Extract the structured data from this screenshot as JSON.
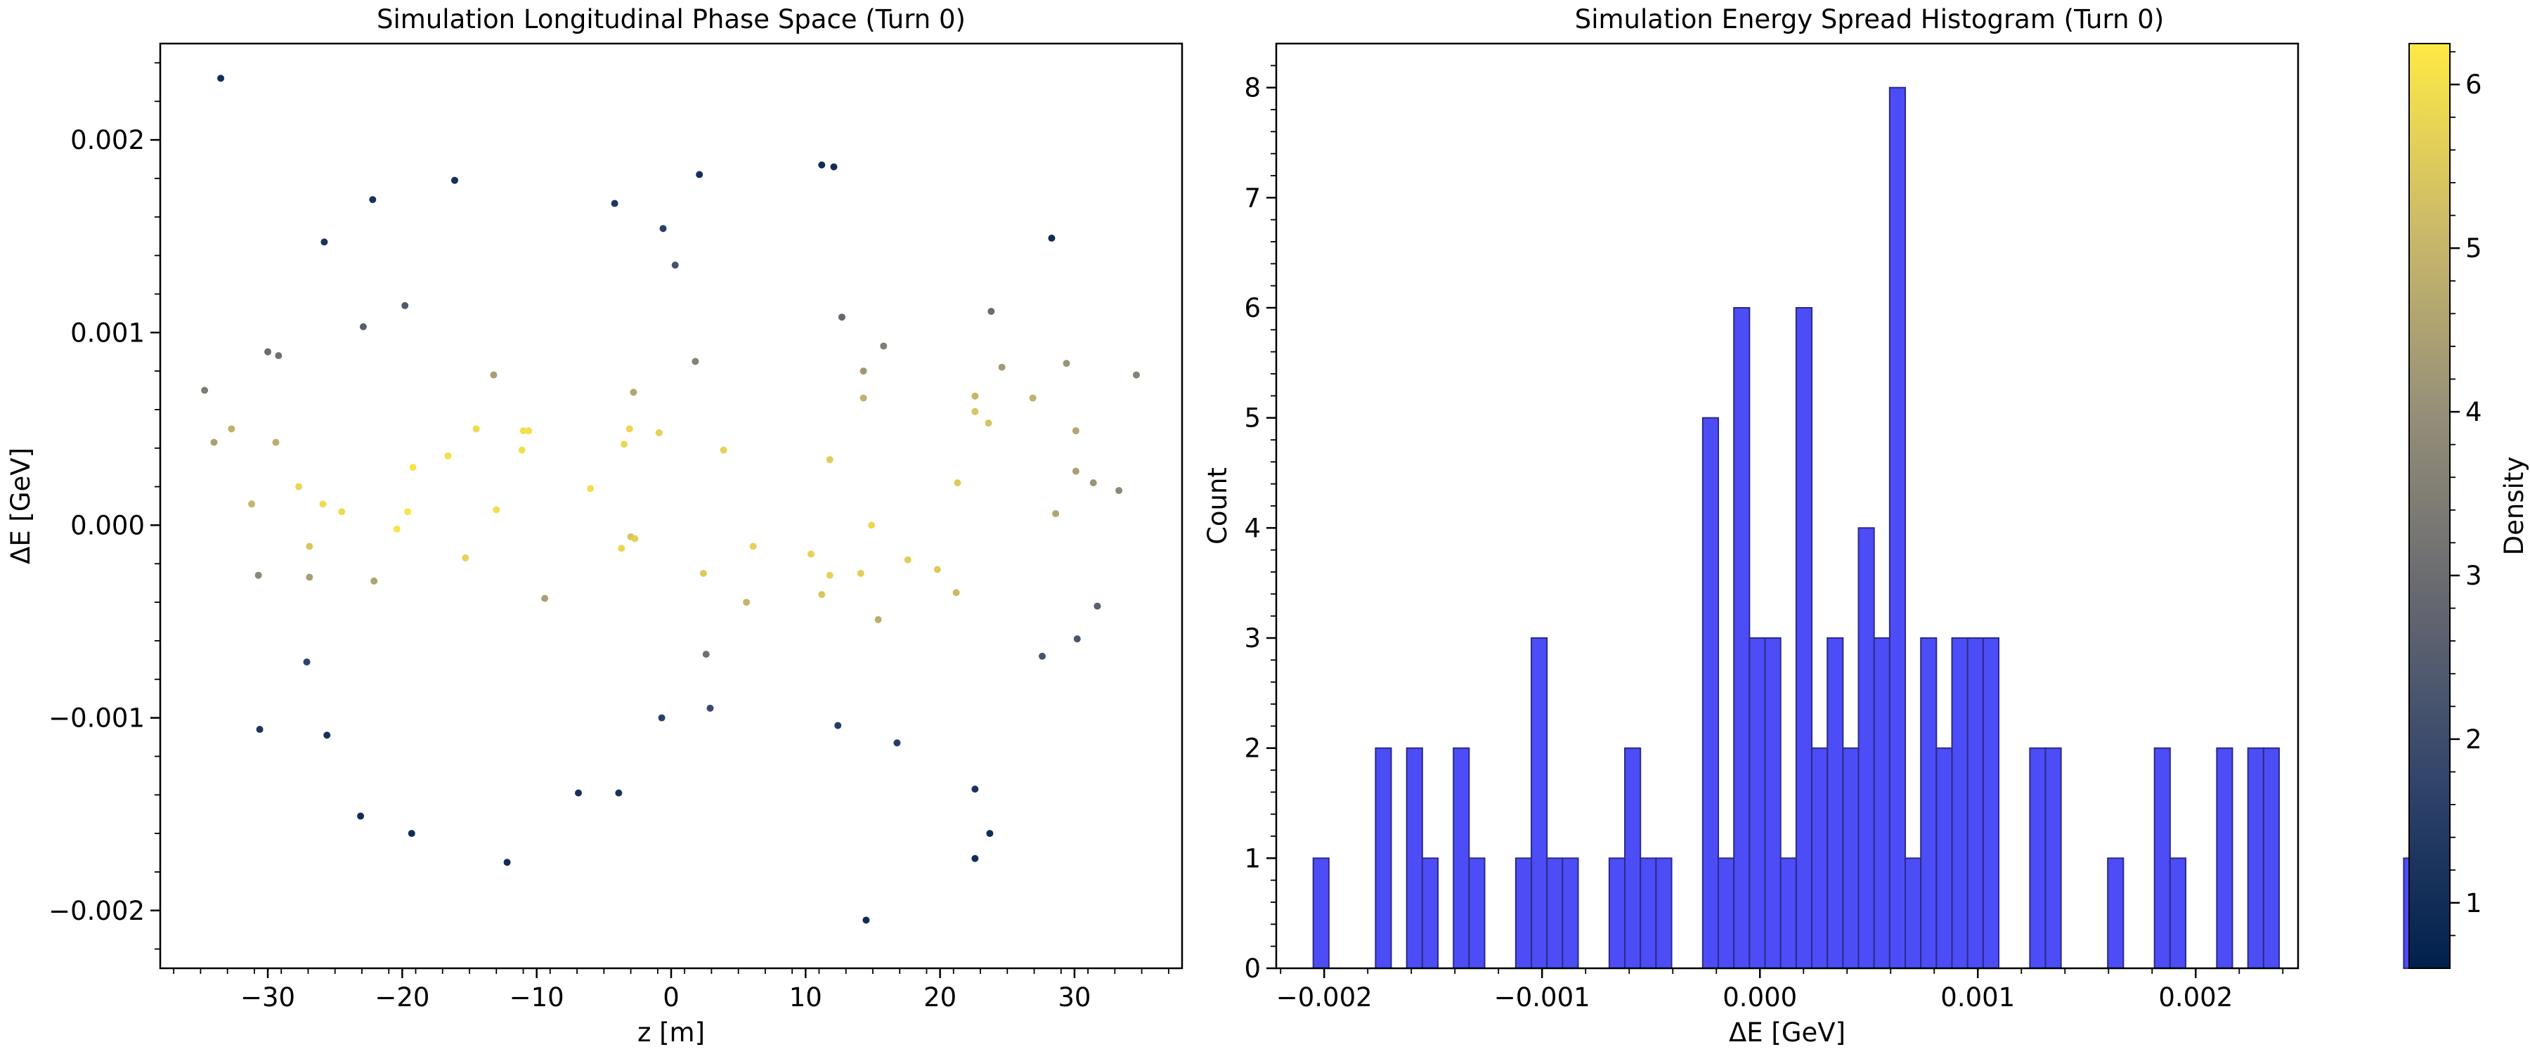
{
  "chart_data": [
    {
      "type": "scatter",
      "title": "Simulation Longitudinal Phase Space (Turn 0)",
      "xlabel": "z [m]",
      "ylabel": "ΔE [GeV]",
      "xlim": [
        -38,
        38
      ],
      "ylim": [
        -0.0023,
        0.0025
      ],
      "xticks": [
        -30,
        -20,
        -10,
        0,
        10,
        20,
        30
      ],
      "xtick_labels": [
        "−30",
        "−20",
        "−10",
        "0",
        "10",
        "20",
        "30"
      ],
      "yticks": [
        -0.002,
        -0.001,
        0,
        0.001,
        0.002
      ],
      "ytick_labels": [
        "−0.002",
        "−0.001",
        "0.000",
        "0.001",
        "0.002"
      ],
      "grid": false,
      "color_by": "density",
      "points": [
        {
          "x": -33.5,
          "y": 0.00232,
          "c": 1.0
        },
        {
          "x": -16.1,
          "y": 0.00179,
          "c": 1.1
        },
        {
          "x": -22.2,
          "y": 0.00169,
          "c": 1.2
        },
        {
          "x": -25.8,
          "y": 0.00147,
          "c": 1.2
        },
        {
          "x": -4.2,
          "y": 0.00167,
          "c": 1.3
        },
        {
          "x": -0.6,
          "y": 0.00154,
          "c": 1.6
        },
        {
          "x": 2.1,
          "y": 0.00182,
          "c": 1.1
        },
        {
          "x": 11.2,
          "y": 0.00187,
          "c": 1.0
        },
        {
          "x": 12.1,
          "y": 0.00186,
          "c": 1.0
        },
        {
          "x": 28.3,
          "y": 0.00149,
          "c": 1.0
        },
        {
          "x": 0.3,
          "y": 0.00135,
          "c": 2.2
        },
        {
          "x": -19.8,
          "y": 0.00114,
          "c": 2.4
        },
        {
          "x": -22.9,
          "y": 0.00103,
          "c": 2.5
        },
        {
          "x": 12.7,
          "y": 0.00108,
          "c": 2.8
        },
        {
          "x": 23.8,
          "y": 0.00111,
          "c": 3.0
        },
        {
          "x": -30.0,
          "y": 0.0009,
          "c": 3.0
        },
        {
          "x": -29.2,
          "y": 0.00088,
          "c": 3.1
        },
        {
          "x": 15.8,
          "y": 0.00093,
          "c": 3.5
        },
        {
          "x": 1.8,
          "y": 0.00085,
          "c": 3.6
        },
        {
          "x": 29.4,
          "y": 0.00084,
          "c": 4.1
        },
        {
          "x": 24.6,
          "y": 0.00082,
          "c": 4.3
        },
        {
          "x": 14.3,
          "y": 0.0008,
          "c": 4.2
        },
        {
          "x": -13.2,
          "y": 0.00078,
          "c": 4.4
        },
        {
          "x": 34.6,
          "y": 0.00078,
          "c": 3.6
        },
        {
          "x": -34.7,
          "y": 0.0007,
          "c": 3.4
        },
        {
          "x": -2.8,
          "y": 0.00069,
          "c": 4.6
        },
        {
          "x": 22.6,
          "y": 0.00067,
          "c": 5.0
        },
        {
          "x": 26.9,
          "y": 0.00066,
          "c": 4.9
        },
        {
          "x": 14.3,
          "y": 0.00066,
          "c": 4.9
        },
        {
          "x": 22.6,
          "y": 0.00059,
          "c": 5.4
        },
        {
          "x": 23.6,
          "y": 0.00053,
          "c": 5.3
        },
        {
          "x": -32.7,
          "y": 0.0005,
          "c": 4.9
        },
        {
          "x": -14.5,
          "y": 0.0005,
          "c": 5.9
        },
        {
          "x": -11.0,
          "y": 0.00049,
          "c": 6.0
        },
        {
          "x": -10.6,
          "y": 0.00049,
          "c": 6.0
        },
        {
          "x": -3.1,
          "y": 0.0005,
          "c": 5.8
        },
        {
          "x": -0.9,
          "y": 0.00048,
          "c": 5.7
        },
        {
          "x": 30.1,
          "y": 0.00049,
          "c": 4.6
        },
        {
          "x": -34.0,
          "y": 0.00043,
          "c": 4.4
        },
        {
          "x": -29.4,
          "y": 0.00043,
          "c": 4.8
        },
        {
          "x": -3.5,
          "y": 0.00042,
          "c": 5.8
        },
        {
          "x": 3.9,
          "y": 0.00039,
          "c": 5.7
        },
        {
          "x": -11.1,
          "y": 0.00039,
          "c": 6.0
        },
        {
          "x": -16.6,
          "y": 0.00036,
          "c": 6.0
        },
        {
          "x": 11.8,
          "y": 0.00034,
          "c": 5.6
        },
        {
          "x": -19.2,
          "y": 0.0003,
          "c": 6.1
        },
        {
          "x": 30.1,
          "y": 0.00028,
          "c": 4.4
        },
        {
          "x": 31.4,
          "y": 0.00022,
          "c": 4.1
        },
        {
          "x": 21.3,
          "y": 0.00022,
          "c": 5.5
        },
        {
          "x": -27.7,
          "y": 0.0002,
          "c": 5.8
        },
        {
          "x": -6.0,
          "y": 0.00019,
          "c": 6.0
        },
        {
          "x": 33.3,
          "y": 0.00018,
          "c": 3.8
        },
        {
          "x": -31.2,
          "y": 0.00011,
          "c": 5.0
        },
        {
          "x": -25.9,
          "y": 0.00011,
          "c": 5.9
        },
        {
          "x": -24.5,
          "y": 7e-05,
          "c": 5.9
        },
        {
          "x": -19.6,
          "y": 7e-05,
          "c": 6.1
        },
        {
          "x": -13.0,
          "y": 8e-05,
          "c": 6.0
        },
        {
          "x": 28.6,
          "y": 6e-05,
          "c": 4.6
        },
        {
          "x": -20.4,
          "y": -2e-05,
          "c": 6.1
        },
        {
          "x": 14.9,
          "y": 0.0,
          "c": 5.8
        },
        {
          "x": -3.0,
          "y": -6e-05,
          "c": 5.4
        },
        {
          "x": -2.7,
          "y": -7e-05,
          "c": 5.6
        },
        {
          "x": -26.9,
          "y": -0.00011,
          "c": 5.4
        },
        {
          "x": -3.7,
          "y": -0.00012,
          "c": 5.8
        },
        {
          "x": 6.1,
          "y": -0.00011,
          "c": 5.7
        },
        {
          "x": 10.4,
          "y": -0.00015,
          "c": 5.7
        },
        {
          "x": -15.3,
          "y": -0.00017,
          "c": 5.7
        },
        {
          "x": 17.6,
          "y": -0.00018,
          "c": 5.6
        },
        {
          "x": 19.8,
          "y": -0.00023,
          "c": 5.5
        },
        {
          "x": 14.1,
          "y": -0.00025,
          "c": 5.6
        },
        {
          "x": 11.8,
          "y": -0.00026,
          "c": 5.7
        },
        {
          "x": 2.4,
          "y": -0.00025,
          "c": 5.5
        },
        {
          "x": -30.7,
          "y": -0.00026,
          "c": 3.8
        },
        {
          "x": -26.9,
          "y": -0.00027,
          "c": 4.4
        },
        {
          "x": -22.1,
          "y": -0.00029,
          "c": 4.5
        },
        {
          "x": 21.2,
          "y": -0.00035,
          "c": 5.1
        },
        {
          "x": 11.2,
          "y": -0.00036,
          "c": 5.4
        },
        {
          "x": -9.4,
          "y": -0.00038,
          "c": 4.4
        },
        {
          "x": 5.6,
          "y": -0.0004,
          "c": 5.0
        },
        {
          "x": 31.7,
          "y": -0.00042,
          "c": 2.6
        },
        {
          "x": 15.4,
          "y": -0.00049,
          "c": 4.8
        },
        {
          "x": 30.2,
          "y": -0.00059,
          "c": 2.3
        },
        {
          "x": 2.6,
          "y": -0.00067,
          "c": 3.1
        },
        {
          "x": 27.6,
          "y": -0.00068,
          "c": 2.2
        },
        {
          "x": -27.1,
          "y": -0.00071,
          "c": 1.7
        },
        {
          "x": 2.9,
          "y": -0.00095,
          "c": 1.9
        },
        {
          "x": -0.7,
          "y": -0.001,
          "c": 1.6
        },
        {
          "x": 12.4,
          "y": -0.00104,
          "c": 1.5
        },
        {
          "x": -30.6,
          "y": -0.00106,
          "c": 1.3
        },
        {
          "x": -25.6,
          "y": -0.00109,
          "c": 1.2
        },
        {
          "x": 16.8,
          "y": -0.00113,
          "c": 1.5
        },
        {
          "x": 22.6,
          "y": -0.00137,
          "c": 1.2
        },
        {
          "x": -6.9,
          "y": -0.00139,
          "c": 1.1
        },
        {
          "x": -3.9,
          "y": -0.00139,
          "c": 1.2
        },
        {
          "x": -23.1,
          "y": -0.00151,
          "c": 1.0
        },
        {
          "x": -19.3,
          "y": -0.0016,
          "c": 1.0
        },
        {
          "x": 23.7,
          "y": -0.0016,
          "c": 1.0
        },
        {
          "x": 22.6,
          "y": -0.00173,
          "c": 1.0
        },
        {
          "x": -12.2,
          "y": -0.00175,
          "c": 1.0
        },
        {
          "x": 14.5,
          "y": -0.00205,
          "c": 1.0
        }
      ]
    },
    {
      "type": "bar",
      "subtype": "histogram",
      "title": "Simulation Energy Spread Histogram (Turn 0)",
      "xlabel": "ΔE [GeV]",
      "ylabel": "Count",
      "xlim": [
        -0.00222,
        0.00247
      ],
      "ylim": [
        0,
        8.4
      ],
      "xticks": [
        -0.002,
        -0.001,
        0,
        0.001,
        0.002
      ],
      "xtick_labels": [
        "−0.002",
        "−0.001",
        "0.000",
        "0.001",
        "0.002"
      ],
      "yticks": [
        0,
        1,
        2,
        3,
        4,
        5,
        6,
        7,
        8
      ],
      "ytick_labels": [
        "0",
        "1",
        "2",
        "3",
        "4",
        "5",
        "6",
        "7",
        "8"
      ],
      "grid": false,
      "bin_start": -0.00205,
      "bin_width": 7.15e-05,
      "counts": [
        1,
        0,
        0,
        0,
        2,
        0,
        2,
        1,
        0,
        2,
        1,
        0,
        0,
        1,
        3,
        1,
        1,
        0,
        0,
        1,
        2,
        1,
        1,
        0,
        0,
        5,
        1,
        6,
        3,
        3,
        1,
        6,
        2,
        3,
        2,
        4,
        3,
        8,
        1,
        3,
        2,
        3,
        3,
        3,
        0,
        0,
        2,
        2,
        0,
        0,
        0,
        1,
        0,
        0,
        2,
        1,
        0,
        0,
        2,
        0,
        2,
        2,
        0,
        0,
        0,
        0,
        0,
        0,
        0,
        0,
        1
      ],
      "bar_color": "#4d4df7",
      "edge_color": "#2a2a8a"
    }
  ],
  "colorbar": {
    "label": "Density",
    "ticks": [
      1,
      2,
      3,
      4,
      5,
      6
    ],
    "tick_labels": [
      "1",
      "2",
      "3",
      "4",
      "5",
      "6"
    ],
    "range": [
      0.6,
      6.25
    ],
    "colormap": "cividis",
    "stops": [
      "#00204c",
      "#31446b",
      "#666870",
      "#958f78",
      "#cbba69",
      "#ffe945"
    ]
  }
}
